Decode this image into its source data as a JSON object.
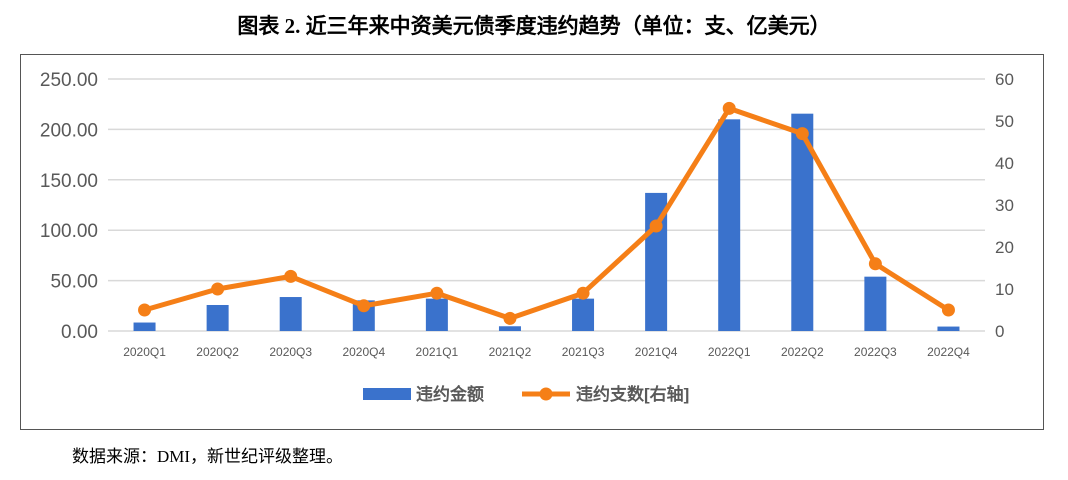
{
  "title": "图表 2. 近三年来中资美元债季度违约趋势（单位：支、亿美元）",
  "source": "数据来源：DMI，新世纪评级整理。",
  "chart_data": {
    "type": "bar+line",
    "categories": [
      "2020Q1",
      "2020Q2",
      "2020Q3",
      "2020Q4",
      "2021Q1",
      "2021Q2",
      "2021Q3",
      "2021Q4",
      "2022Q1",
      "2022Q2",
      "2022Q3",
      "2022Q4"
    ],
    "series": [
      {
        "name": "违约金额",
        "type": "bar",
        "axis": "left",
        "color": "#3A72CC",
        "values": [
          8.4,
          25.8,
          33.7,
          30.4,
          32.1,
          4.7,
          32.1,
          137,
          210,
          215.6,
          53.9,
          4.4
        ]
      },
      {
        "name": "违约支数[右轴]",
        "type": "line",
        "axis": "right",
        "color": "#F57F17",
        "values": [
          5,
          10,
          13,
          6,
          9,
          3,
          9,
          25,
          53,
          47,
          16,
          5
        ]
      }
    ],
    "y_left": {
      "range": [
        0,
        250
      ],
      "ticks": [
        "0.00",
        "50.00",
        "100.00",
        "150.00",
        "200.00",
        "250.00"
      ]
    },
    "y_right": {
      "range": [
        0,
        60
      ],
      "ticks": [
        "0",
        "10",
        "20",
        "30",
        "40",
        "50",
        "60"
      ]
    },
    "grid": true,
    "legend": "bottom"
  }
}
